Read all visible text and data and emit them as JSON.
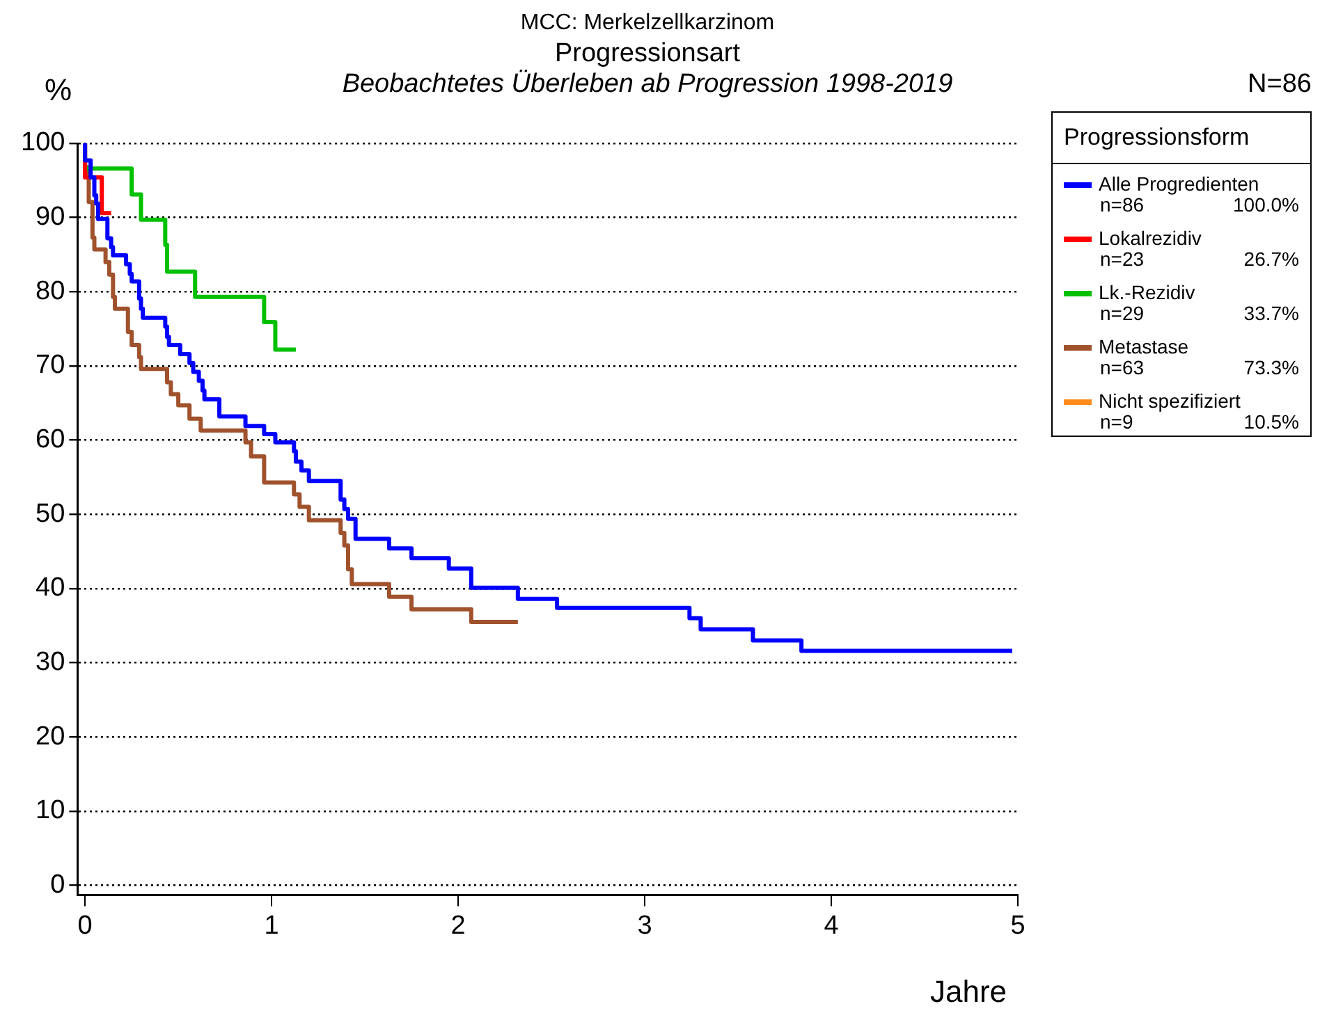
{
  "chart_data": {
    "type": "step",
    "title": "Progressionsart",
    "subtitle": "Beobachtetes Überleben ab Progression 1998-2019",
    "ylabel": "%",
    "xlabel": "Jahre",
    "legend_title": "Progressionsform",
    "annotations": [
      "MCC: Merkelzellkarzinom",
      "N=86",
      "n=86",
      "100.0%",
      "n=23",
      "26.7%",
      "n=29",
      "33.7%",
      "n=63",
      "73.3%",
      "n=9",
      "10.5%"
    ],
    "xlim": [
      -0.04,
      5
    ],
    "xticks": [
      0,
      1,
      2,
      3,
      4,
      5
    ],
    "ylim": [
      -1.3,
      100
    ],
    "yticks": [
      0,
      10,
      20,
      30,
      40,
      50,
      60,
      70,
      80,
      90,
      100
    ],
    "grid": "y",
    "legend": "right",
    "line_style": "solid",
    "marker": "none",
    "series": [
      {
        "name": "Alle Progredienten",
        "color": "#0000ff",
        "x": [
          0,
          0.03,
          0.05,
          0.06,
          0.07,
          0.12,
          0.14,
          0.15,
          0.22,
          0.24,
          0.25,
          0.29,
          0.3,
          0.31,
          0.43,
          0.44,
          0.45,
          0.51,
          0.56,
          0.58,
          0.61,
          0.63,
          0.64,
          0.72,
          0.86,
          0.96,
          1.02,
          1.12,
          1.13,
          1.16,
          1.2,
          1.37,
          1.39,
          1.41,
          1.45,
          1.63,
          1.75,
          1.95,
          2.07,
          2.32,
          2.53,
          3.24,
          3.3,
          3.58,
          3.84,
          4.09,
          4.97
        ],
        "values": [
          100,
          97.7,
          95.4,
          93,
          91.9,
          89.8,
          87.2,
          86,
          84.9,
          83.7,
          82.4,
          81.4,
          79.1,
          77.7,
          76.5,
          75.3,
          73.9,
          72.8,
          71.6,
          70.4,
          69.2,
          68,
          66.7,
          65.5,
          63.2,
          61.9,
          60.8,
          59.7,
          58.5,
          57.1,
          55.9,
          54.5,
          52,
          50.7,
          49.4,
          46.7,
          45.4,
          44.1,
          42.7,
          40.1,
          38.6,
          37.4,
          36,
          34.5,
          33,
          31.6,
          31.6
        ]
      },
      {
        "name": "Lokalrezidiv",
        "color": "#ff0000",
        "x": [
          0,
          0.09,
          0.14
        ],
        "values": [
          100,
          95.4,
          90.6
        ]
      },
      {
        "name": "Lk.-Rezidiv",
        "color": "#00c000",
        "x": [
          0,
          0.25,
          0.3,
          0.43,
          0.44,
          0.59,
          0.96,
          1.02,
          1.13
        ],
        "values": [
          100,
          96.6,
          93.1,
          89.7,
          86.3,
          82.7,
          79.3,
          75.9,
          72.2
        ]
      },
      {
        "name": "Metastase",
        "color": "#a0522d",
        "x": [
          0,
          0.02,
          0.04,
          0.05,
          0.11,
          0.13,
          0.15,
          0.16,
          0.23,
          0.25,
          0.29,
          0.3,
          0.44,
          0.46,
          0.5,
          0.56,
          0.62,
          0.86,
          0.89,
          0.96,
          1.12,
          1.15,
          1.2,
          1.37,
          1.39,
          1.41,
          1.43,
          1.63,
          1.75,
          2.07,
          2.32
        ],
        "values": [
          100,
          96.8,
          92.1,
          87.3,
          85.7,
          84,
          82.3,
          79.3,
          77.7,
          74.6,
          72.8,
          71.2,
          69.6,
          67.8,
          66.2,
          64.7,
          62.9,
          61.3,
          59.7,
          57.8,
          54.3,
          52.7,
          51,
          49.2,
          47.5,
          45.8,
          42.6,
          40.6,
          38.9,
          37.2,
          35.5
        ]
      },
      {
        "name": "Nicht spezifiziert",
        "color": "#ff8c1a"
      }
    ]
  }
}
